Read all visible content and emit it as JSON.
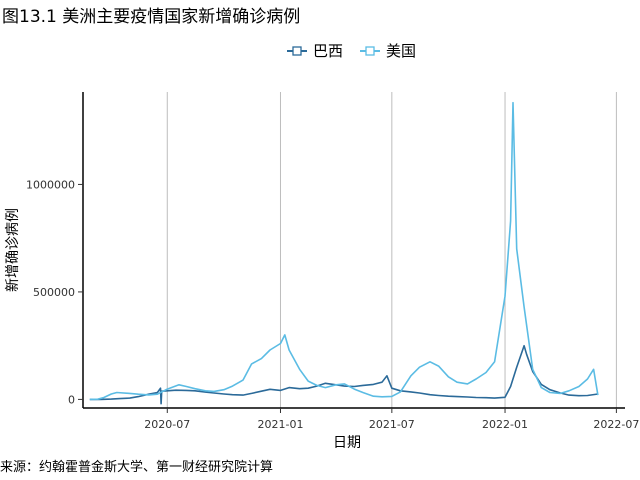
{
  "figure": {
    "title": "图13.1 美洲主要疫情国家新增确诊病例",
    "source": "来源：约翰霍普金斯大学、第一财经研究院计算"
  },
  "chart_data": {
    "type": "line",
    "xlabel": "日期",
    "ylabel": "新增确诊病例",
    "x_ticks": [
      "2020-07",
      "2021-01",
      "2021-07",
      "2022-01",
      "2022-07"
    ],
    "y_ticks": [
      0,
      500000,
      1000000
    ],
    "xlim": [
      "2020-02-15",
      "2022-07-15"
    ],
    "ylim": [
      -40000,
      1430000
    ],
    "grid": "vertical-major",
    "legend_position": "top",
    "series": [
      {
        "name": "巴西",
        "color": "#2b6a99",
        "points": [
          [
            "2020-02-26",
            0
          ],
          [
            "2020-03-15",
            100
          ],
          [
            "2020-04-01",
            1500
          ],
          [
            "2020-04-15",
            3500
          ],
          [
            "2020-05-01",
            6000
          ],
          [
            "2020-05-15",
            13000
          ],
          [
            "2020-06-01",
            24000
          ],
          [
            "2020-06-15",
            32000
          ],
          [
            "2020-06-20",
            52000
          ],
          [
            "2020-06-21",
            -20000
          ],
          [
            "2020-06-22",
            38000
          ],
          [
            "2020-07-01",
            40000
          ],
          [
            "2020-07-15",
            43000
          ],
          [
            "2020-08-01",
            42000
          ],
          [
            "2020-08-15",
            40000
          ],
          [
            "2020-09-01",
            34000
          ],
          [
            "2020-09-15",
            30000
          ],
          [
            "2020-10-01",
            25000
          ],
          [
            "2020-10-15",
            22000
          ],
          [
            "2020-11-01",
            20000
          ],
          [
            "2020-11-15",
            28000
          ],
          [
            "2020-12-01",
            38000
          ],
          [
            "2020-12-15",
            47000
          ],
          [
            "2021-01-01",
            42000
          ],
          [
            "2021-01-15",
            55000
          ],
          [
            "2021-02-01",
            50000
          ],
          [
            "2021-02-15",
            52000
          ],
          [
            "2021-03-01",
            62000
          ],
          [
            "2021-03-15",
            75000
          ],
          [
            "2021-04-01",
            68000
          ],
          [
            "2021-04-15",
            62000
          ],
          [
            "2021-05-01",
            60000
          ],
          [
            "2021-05-15",
            65000
          ],
          [
            "2021-06-01",
            70000
          ],
          [
            "2021-06-15",
            80000
          ],
          [
            "2021-06-23",
            110000
          ],
          [
            "2021-07-01",
            52000
          ],
          [
            "2021-07-15",
            40000
          ],
          [
            "2021-08-01",
            35000
          ],
          [
            "2021-08-15",
            30000
          ],
          [
            "2021-09-01",
            22000
          ],
          [
            "2021-09-15",
            18000
          ],
          [
            "2021-10-01",
            15000
          ],
          [
            "2021-10-15",
            13000
          ],
          [
            "2021-11-01",
            11000
          ],
          [
            "2021-11-15",
            9000
          ],
          [
            "2021-12-01",
            8000
          ],
          [
            "2021-12-15",
            6000
          ],
          [
            "2022-01-01",
            10000
          ],
          [
            "2022-01-10",
            60000
          ],
          [
            "2022-01-20",
            150000
          ],
          [
            "2022-02-01",
            250000
          ],
          [
            "2022-02-05",
            210000
          ],
          [
            "2022-02-15",
            130000
          ],
          [
            "2022-03-01",
            70000
          ],
          [
            "2022-03-15",
            45000
          ],
          [
            "2022-04-01",
            30000
          ],
          [
            "2022-04-15",
            20000
          ],
          [
            "2022-05-01",
            17000
          ],
          [
            "2022-05-15",
            18000
          ],
          [
            "2022-06-01",
            25000
          ]
        ]
      },
      {
        "name": "美国",
        "color": "#5bbce4",
        "points": [
          [
            "2020-02-26",
            0
          ],
          [
            "2020-03-10",
            800
          ],
          [
            "2020-03-20",
            9000
          ],
          [
            "2020-04-01",
            25000
          ],
          [
            "2020-04-10",
            32000
          ],
          [
            "2020-05-01",
            28000
          ],
          [
            "2020-05-15",
            24000
          ],
          [
            "2020-06-01",
            21000
          ],
          [
            "2020-06-15",
            24000
          ],
          [
            "2020-07-01",
            48000
          ],
          [
            "2020-07-20",
            68000
          ],
          [
            "2020-08-01",
            60000
          ],
          [
            "2020-08-15",
            50000
          ],
          [
            "2020-09-01",
            40000
          ],
          [
            "2020-09-15",
            37000
          ],
          [
            "2020-10-01",
            45000
          ],
          [
            "2020-10-15",
            62000
          ],
          [
            "2020-11-01",
            90000
          ],
          [
            "2020-11-15",
            165000
          ],
          [
            "2020-12-01",
            190000
          ],
          [
            "2020-12-15",
            230000
          ],
          [
            "2021-01-01",
            260000
          ],
          [
            "2021-01-08",
            300000
          ],
          [
            "2021-01-15",
            230000
          ],
          [
            "2021-02-01",
            140000
          ],
          [
            "2021-02-15",
            85000
          ],
          [
            "2021-03-01",
            65000
          ],
          [
            "2021-03-15",
            55000
          ],
          [
            "2021-04-01",
            68000
          ],
          [
            "2021-04-15",
            72000
          ],
          [
            "2021-05-01",
            48000
          ],
          [
            "2021-05-15",
            32000
          ],
          [
            "2021-06-01",
            15000
          ],
          [
            "2021-06-15",
            12000
          ],
          [
            "2021-07-01",
            14000
          ],
          [
            "2021-07-15",
            35000
          ],
          [
            "2021-08-01",
            110000
          ],
          [
            "2021-08-15",
            150000
          ],
          [
            "2021-09-01",
            175000
          ],
          [
            "2021-09-15",
            155000
          ],
          [
            "2021-10-01",
            105000
          ],
          [
            "2021-10-15",
            80000
          ],
          [
            "2021-11-01",
            72000
          ],
          [
            "2021-11-15",
            95000
          ],
          [
            "2021-12-01",
            125000
          ],
          [
            "2021-12-15",
            175000
          ],
          [
            "2022-01-01",
            480000
          ],
          [
            "2022-01-10",
            830000
          ],
          [
            "2022-01-14",
            1380000
          ],
          [
            "2022-01-20",
            700000
          ],
          [
            "2022-02-01",
            430000
          ],
          [
            "2022-02-15",
            140000
          ],
          [
            "2022-03-01",
            55000
          ],
          [
            "2022-03-15",
            32000
          ],
          [
            "2022-04-01",
            28000
          ],
          [
            "2022-04-15",
            40000
          ],
          [
            "2022-05-01",
            60000
          ],
          [
            "2022-05-15",
            95000
          ],
          [
            "2022-05-25",
            140000
          ],
          [
            "2022-06-01",
            20000
          ]
        ]
      }
    ]
  }
}
